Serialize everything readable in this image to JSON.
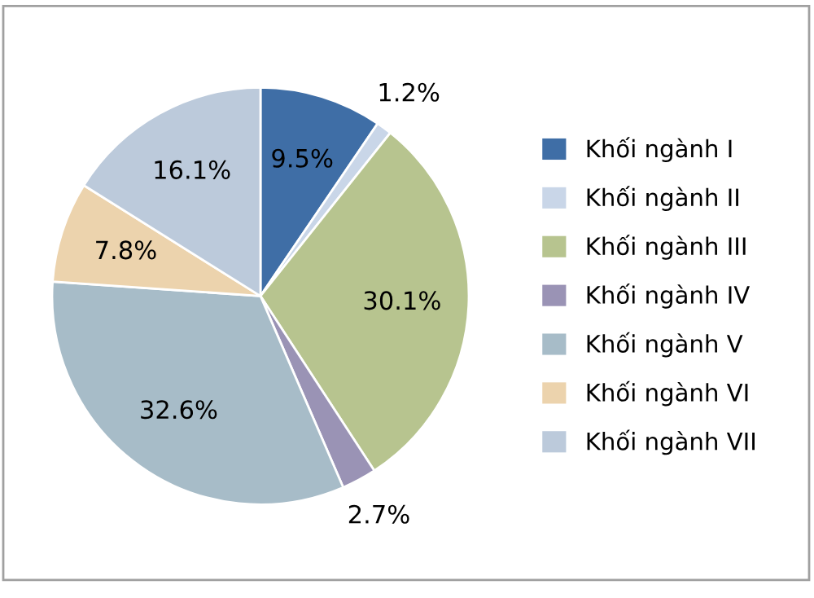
{
  "chart_data": {
    "type": "pie",
    "categories": [
      "Khối ngành I",
      "Khối ngành II",
      "Khối ngành III",
      "Khối ngành IV",
      "Khối ngành V",
      "Khối ngành VI",
      "Khối ngành VII"
    ],
    "values": [
      9.5,
      1.2,
      30.1,
      2.7,
      32.6,
      7.8,
      16.1
    ],
    "colors": [
      "#3f6ea6",
      "#c9d6e8",
      "#b7c48f",
      "#9a93b5",
      "#a7bcc8",
      "#ecd3ad",
      "#bccadb"
    ],
    "value_labels": [
      "9.5%",
      "1.2%",
      "30.1%",
      "2.7%",
      "32.6%",
      "7.8%",
      "16.1%"
    ],
    "legend": "right"
  }
}
